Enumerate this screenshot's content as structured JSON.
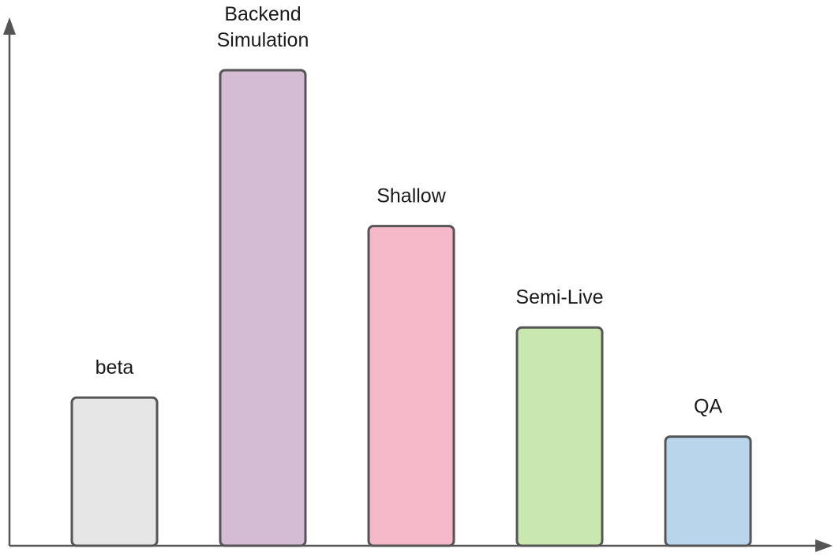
{
  "chart_data": {
    "type": "bar",
    "categories": [
      "beta",
      "Backend Simulation",
      "Shallow",
      "Semi-Live",
      "QA"
    ],
    "label_lines": [
      [
        "beta"
      ],
      [
        "Backend",
        "Simulation"
      ],
      [
        "Shallow"
      ],
      [
        "Semi-Live"
      ],
      [
        "QA"
      ]
    ],
    "values": [
      1.9,
      6.1,
      4.1,
      2.8,
      1.4
    ],
    "colors": [
      "#e6e6e6",
      "#d5bcd5",
      "#f4b8c9",
      "#c9e8b0",
      "#b8d5ec"
    ],
    "ylim": [
      0,
      7
    ],
    "title": "",
    "xlabel": "",
    "ylabel": "",
    "grid": false,
    "axis_arrows": true
  }
}
